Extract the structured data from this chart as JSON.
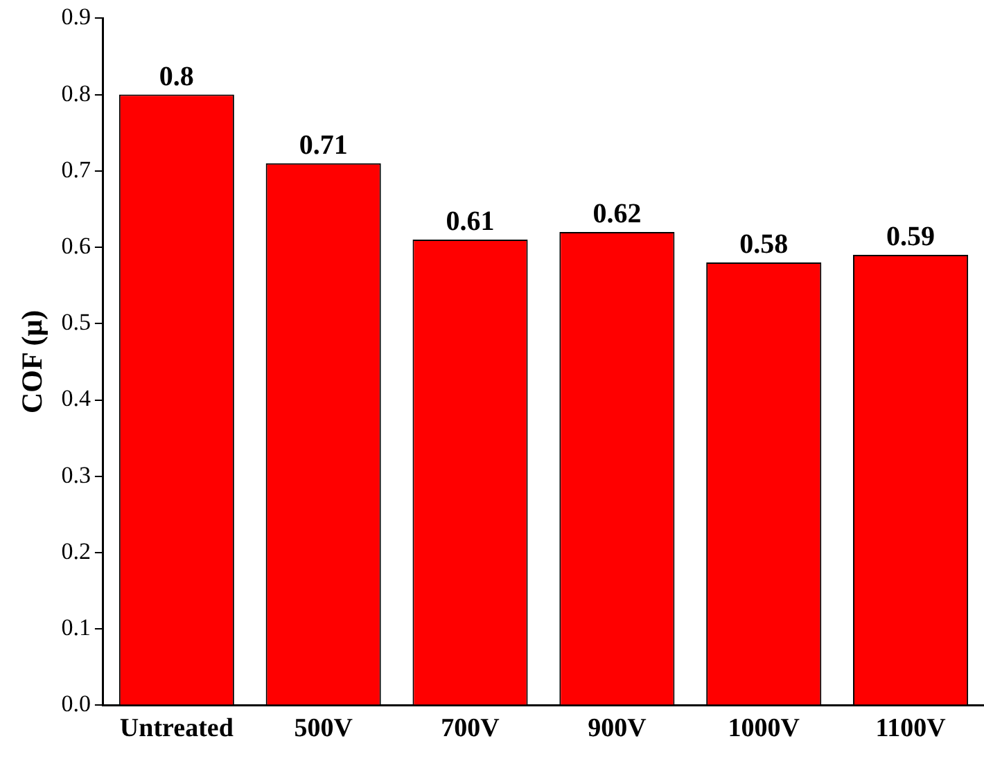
{
  "chart_data": {
    "type": "bar",
    "ylabel": "COF (μ)",
    "categories": [
      "Untreated",
      "500V",
      "700V",
      "900V",
      "1000V",
      "1100V"
    ],
    "values": [
      0.8,
      0.71,
      0.61,
      0.62,
      0.58,
      0.59
    ],
    "color": "#ff0000",
    "ylim": [
      0,
      0.9
    ],
    "yticks": [
      {
        "value": 0,
        "label": "0.0"
      },
      0.1,
      0.2,
      0.3,
      0.4,
      0.5,
      0.6,
      0.7,
      0.8,
      0.9
    ],
    "grid": false,
    "legend": false,
    "data_labels": true
  }
}
